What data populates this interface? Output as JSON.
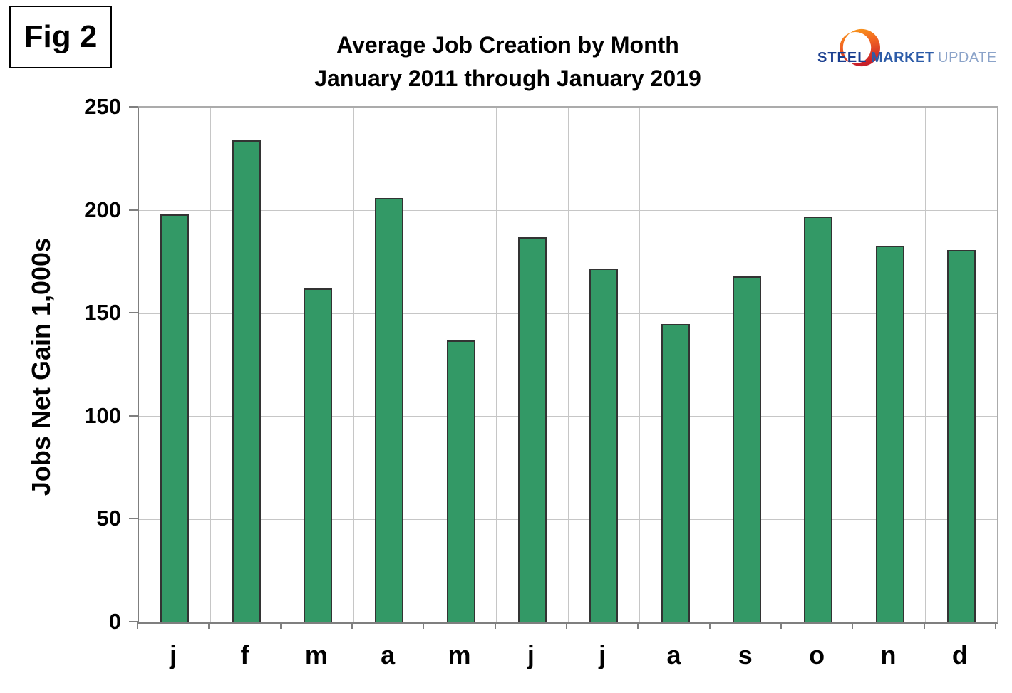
{
  "header": {
    "fig_label": "Fig 2",
    "logo": {
      "word1": "STEEL",
      "word2": "MARKET",
      "word3": "UPDATE",
      "word1_color": "#1a3e8f",
      "word2_color": "#2d5ca8",
      "word3_color": "#8ba3c9",
      "crescent_top_color": "#F9A11B",
      "crescent_mid_color": "#F26522",
      "crescent_bottom_color": "#C8202A"
    }
  },
  "chart_data": {
    "type": "bar",
    "title": "Average Job Creation by Month",
    "subtitle": "January 2011 through January 2019",
    "ylabel": "Jobs Net Gain 1,000s",
    "categories": [
      "j",
      "f",
      "m",
      "a",
      "m",
      "j",
      "j",
      "a",
      "s",
      "o",
      "n",
      "d"
    ],
    "values": [
      198,
      234,
      162,
      206,
      137,
      187,
      172,
      145,
      168,
      197,
      183,
      181
    ],
    "ylim": [
      0,
      250
    ],
    "ytick_step": 50,
    "yticks": [
      0,
      50,
      100,
      150,
      200,
      250
    ],
    "grid": true,
    "legend": "none",
    "bar_color": "#339966",
    "bar_border_color": "#333333",
    "grid_color": "#c6c6c6",
    "axis_color": "#7f7f7f",
    "plot_border_color": "#ababab"
  }
}
